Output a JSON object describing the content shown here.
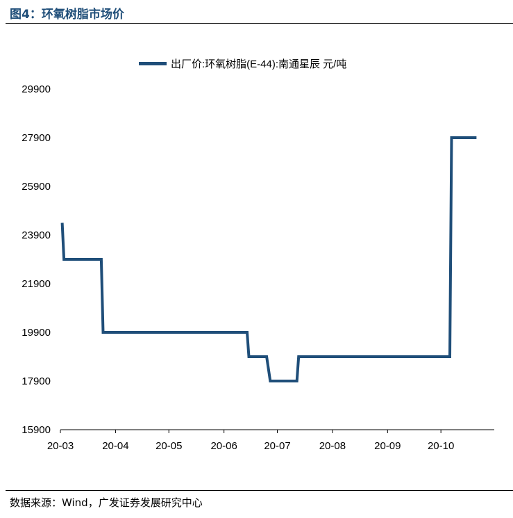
{
  "figure": {
    "title": "图4：环氧树脂市场价",
    "source": "数据来源：Wind，广发证券发展研究中心"
  },
  "colors": {
    "series": "#1f4e79",
    "title": "#1f4e79",
    "axis": "#000000"
  },
  "chart_data": {
    "type": "line",
    "title": "",
    "xlabel": "",
    "ylabel": "",
    "legend_position": "top",
    "grid": false,
    "ylim": [
      15900,
      29900
    ],
    "yticks": [
      15900,
      17900,
      19900,
      21900,
      23900,
      25900,
      27900,
      29900
    ],
    "ytick_labels": [
      "15900",
      "17900",
      "19900",
      "21900",
      "23900",
      "25900",
      "27900",
      "29900"
    ],
    "xlim": [
      "2020-03-01",
      "2020-10-31"
    ],
    "xticks": [
      "2020-03-01",
      "2020-04-01",
      "2020-05-01",
      "2020-06-01",
      "2020-07-01",
      "2020-08-01",
      "2020-09-01",
      "2020-10-01"
    ],
    "xtick_labels": [
      "20-03",
      "20-04",
      "20-05",
      "20-06",
      "20-07",
      "20-08",
      "20-09",
      "20-10"
    ],
    "series": [
      {
        "name": "出厂价:环氧树脂(E-44):南通星辰 元/吨",
        "points": [
          {
            "x": "2020-03-02",
            "y": 24400
          },
          {
            "x": "2020-03-03",
            "y": 22900
          },
          {
            "x": "2020-03-24",
            "y": 22900
          },
          {
            "x": "2020-03-25",
            "y": 19900
          },
          {
            "x": "2020-06-14",
            "y": 19900
          },
          {
            "x": "2020-06-15",
            "y": 18900
          },
          {
            "x": "2020-06-25",
            "y": 18900
          },
          {
            "x": "2020-06-27",
            "y": 17900
          },
          {
            "x": "2020-07-12",
            "y": 17900
          },
          {
            "x": "2020-07-13",
            "y": 18900
          },
          {
            "x": "2020-10-06",
            "y": 18900
          },
          {
            "x": "2020-10-07",
            "y": 27900
          },
          {
            "x": "2020-10-21",
            "y": 27900
          }
        ]
      }
    ]
  }
}
